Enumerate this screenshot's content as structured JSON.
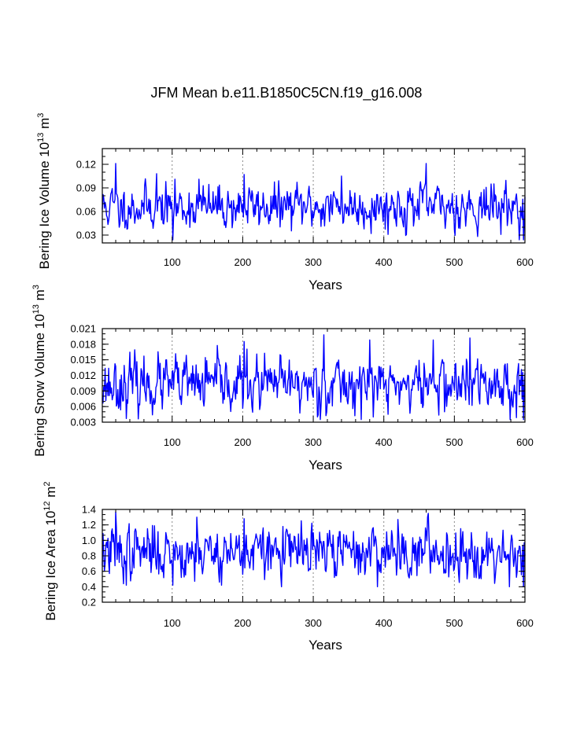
{
  "title": "JFM Mean b.e11.B1850C5CN.f19_g16.008",
  "line_color": "#0000ff",
  "chart_data": [
    {
      "type": "line",
      "id": "ice-volume",
      "ylabel": {
        "main": "Bering Ice Volume 10",
        "exp1": "13",
        "unit": " m",
        "exp2": "3"
      },
      "xlabel": "Years",
      "xlim": [
        1,
        600
      ],
      "ylim": [
        0.02,
        0.14
      ],
      "xticks": [
        100,
        200,
        300,
        400,
        500,
        600
      ],
      "xtick_labels": [
        "100",
        "200",
        "300",
        "400",
        "500",
        "600"
      ],
      "yticks": [
        0.03,
        0.06,
        0.09,
        0.12
      ],
      "ytick_labels": [
        "0.03",
        "0.06",
        "0.09",
        "0.12"
      ],
      "grid": "dotted vertical at x ticks",
      "series": [
        {
          "name": "Bering Ice Volume",
          "mean": 0.066,
          "sd": 0.014,
          "min": 0.024,
          "max": 0.121,
          "seed": 11,
          "features": [
            [
              20,
              0.121
            ],
            [
              25,
              0.04
            ],
            [
              78,
              0.108
            ],
            [
              101,
              0.024
            ],
            [
              138,
              0.101
            ],
            [
              202,
              0.107
            ],
            [
              340,
              0.105
            ],
            [
              460,
              0.121
            ],
            [
              598,
              0.024
            ]
          ]
        }
      ]
    },
    {
      "type": "line",
      "id": "snow-volume",
      "ylabel": {
        "main": "Bering Snow Volume 10",
        "exp1": "13",
        "unit": " m",
        "exp2": "3"
      },
      "xlabel": "Years",
      "xlim": [
        1,
        600
      ],
      "ylim": [
        0.003,
        0.021
      ],
      "xticks": [
        100,
        200,
        300,
        400,
        500,
        600
      ],
      "xtick_labels": [
        "100",
        "200",
        "300",
        "400",
        "500",
        "600"
      ],
      "yticks": [
        0.003,
        0.006,
        0.009,
        0.012,
        0.015,
        0.018,
        0.021
      ],
      "ytick_labels": [
        "0.003",
        "0.006",
        "0.009",
        "0.012",
        "0.015",
        "0.018",
        "0.021"
      ],
      "grid": "dotted vertical at x ticks",
      "series": [
        {
          "name": "Bering Snow Volume",
          "mean": 0.0102,
          "sd": 0.0026,
          "min": 0.0035,
          "max": 0.02,
          "seed": 23,
          "features": [
            [
              202,
              0.0185
            ],
            [
              315,
              0.0198
            ],
            [
              380,
              0.0188
            ],
            [
              470,
              0.0188
            ],
            [
              522,
              0.0192
            ],
            [
              598,
              0.0035
            ]
          ]
        }
      ]
    },
    {
      "type": "line",
      "id": "ice-area",
      "ylabel": {
        "main": "Bering Ice Area 10",
        "exp1": "12",
        "unit": " m",
        "exp2": "2"
      },
      "xlabel": "Years",
      "xlim": [
        1,
        600
      ],
      "ylim": [
        0.2,
        1.4
      ],
      "xticks": [
        100,
        200,
        300,
        400,
        500,
        600
      ],
      "xtick_labels": [
        "100",
        "200",
        "300",
        "400",
        "500",
        "600"
      ],
      "yticks": [
        0.2,
        0.4,
        0.6,
        0.8,
        1.0,
        1.2,
        1.4
      ],
      "ytick_labels": [
        "0.2",
        "0.4",
        "0.6",
        "0.8",
        "1.0",
        "1.2",
        "1.4"
      ],
      "grid": "dotted vertical at x ticks",
      "series": [
        {
          "name": "Bering Ice Area",
          "mean": 0.85,
          "sd": 0.17,
          "min": 0.4,
          "max": 1.37,
          "seed": 37,
          "features": [
            [
              20,
              1.37
            ],
            [
              35,
              0.42
            ],
            [
              101,
              0.42
            ],
            [
              135,
              1.3
            ],
            [
              202,
              1.28
            ],
            [
              420,
              1.27
            ],
            [
              462,
              1.3
            ],
            [
              598,
              0.4
            ]
          ]
        }
      ]
    }
  ]
}
